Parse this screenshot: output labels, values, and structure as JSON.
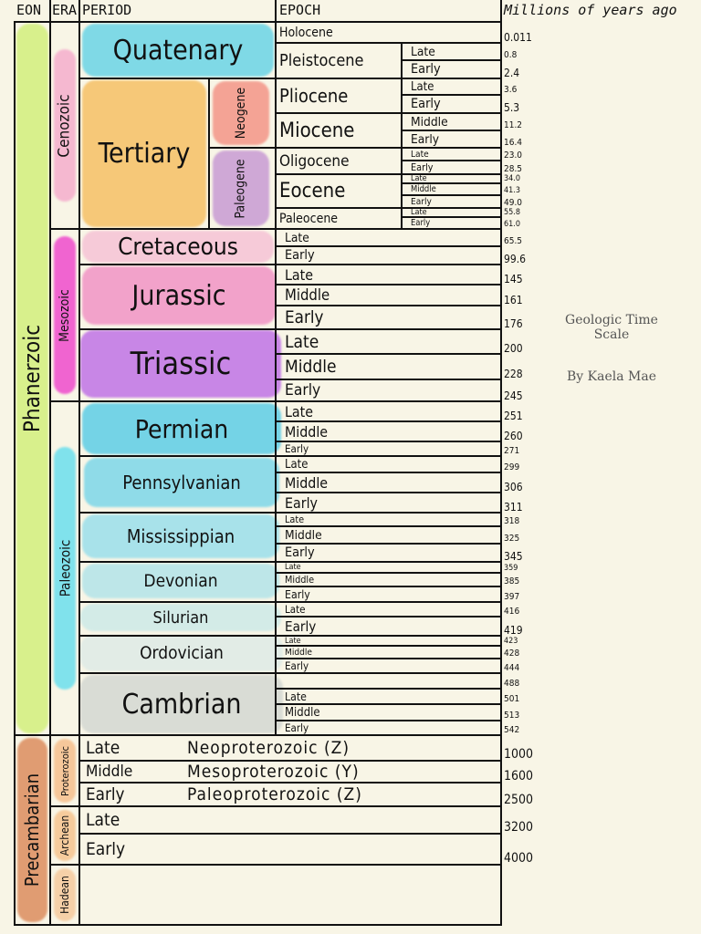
{
  "header": {
    "eon": "EON",
    "era": "ERA",
    "period": "PERIOD",
    "epoch": "EPOCH",
    "mya": "Millions of years ago"
  },
  "side": {
    "title": "Geologic Time Scale",
    "author": "By Kaela Mae"
  },
  "eons": [
    {
      "name": "Phanerzoic",
      "color": "#d8f08c"
    },
    {
      "name": "Precambarian",
      "color": "#e09c72"
    }
  ],
  "eras": [
    {
      "name": "Cenozoic",
      "color": "#f5b8d0"
    },
    {
      "name": "Mesozoic",
      "color": "#f064d0"
    },
    {
      "name": "Paleozoic",
      "color": "#80e2ec"
    },
    {
      "name": "Proterozoic",
      "color": "#f6c79a"
    },
    {
      "name": "Archean",
      "color": "#f6cb9c"
    },
    {
      "name": "Hadean",
      "color": "#f6d0a8"
    }
  ],
  "periods": [
    {
      "name": "Quatenary",
      "color": "#7fd9e6"
    },
    {
      "name": "Tertiary",
      "color": "#f6c878"
    },
    {
      "name": "Cretaceous",
      "color": "#f6cad8"
    },
    {
      "name": "Jurassic",
      "color": "#f2a2ca"
    },
    {
      "name": "Triassic",
      "color": "#c886e6"
    },
    {
      "name": "Permian",
      "color": "#74d3e6"
    },
    {
      "name": "Pennsylvanian",
      "color": "#8fdbe8"
    },
    {
      "name": "Mississippian",
      "color": "#a8e2ea"
    },
    {
      "name": "Devonian",
      "color": "#bde6e8"
    },
    {
      "name": "Silurian",
      "color": "#d3ebe7"
    },
    {
      "name": "Ordovician",
      "color": "#e2ece6"
    },
    {
      "name": "Cambrian",
      "color": "#d9dcd5"
    }
  ],
  "subperiods": [
    {
      "name": "Neogene",
      "color": "#f4a395"
    },
    {
      "name": "Paleogene",
      "color": "#cfa8d6"
    }
  ],
  "epochs": [
    "Holocene",
    "Pleistocene",
    "Pliocene",
    "Miocene",
    "Oligocene",
    "Eocene",
    "Paleocene"
  ],
  "subepochs": [
    "Late",
    "Early",
    "Late",
    "Early",
    "Middle",
    "Early",
    "Late",
    "Early",
    "Late",
    "Middle",
    "Early",
    "Late",
    "Early",
    "Late",
    "Early",
    "Late",
    "Middle",
    "Early",
    "Late",
    "Middle",
    "Early",
    "Late",
    "Middle",
    "Early",
    "Late",
    "Middle",
    "Early",
    "Late",
    "Middle",
    "Early",
    "Late",
    "Middle",
    "Early",
    "Late",
    "Early",
    "Late",
    "Middle",
    "Early",
    "",
    "Late",
    "Middle",
    "Early",
    "Late",
    "Middle",
    "Early",
    "Late",
    "Early"
  ],
  "precambrian_names": [
    "Neoproterozoic (Z)",
    "Mesoproterozoic (Y)",
    "Paleoproterozoic (Z)"
  ],
  "ages": [
    "0.011",
    "0.8",
    "2.4",
    "3.6",
    "5.3",
    "11.2",
    "16.4",
    "23.0",
    "28.5",
    "34.0",
    "41.3",
    "49.0",
    "55.8",
    "61.0",
    "65.5",
    "99.6",
    "145",
    "161",
    "176",
    "200",
    "228",
    "245",
    "251",
    "260",
    "271",
    "299",
    "306",
    "311",
    "318",
    "325",
    "345",
    "359",
    "385",
    "397",
    "416",
    "419",
    "423",
    "428",
    "444",
    "488",
    "501",
    "513",
    "542",
    "1000",
    "1600",
    "2500",
    "3200",
    "4000"
  ]
}
